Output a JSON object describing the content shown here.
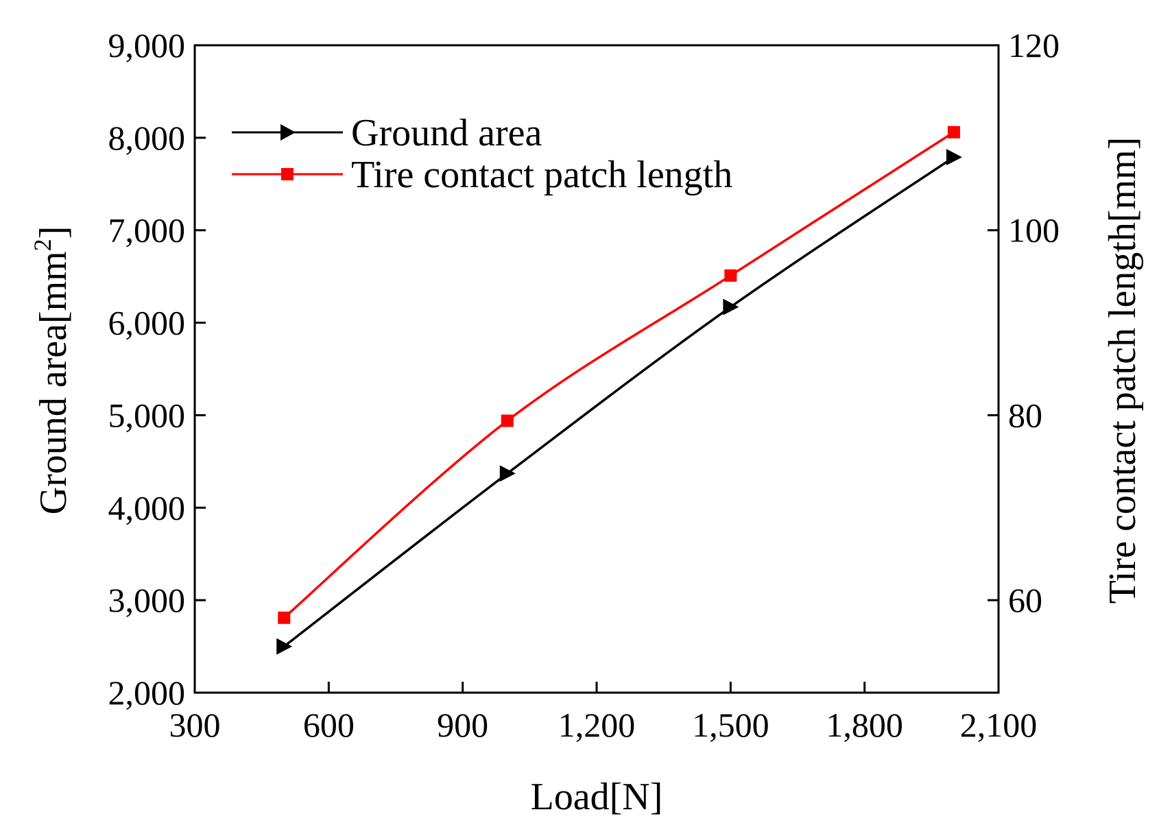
{
  "chart_data": {
    "type": "line",
    "x_axis": {
      "label": "Load[N]",
      "range": [
        300,
        2100
      ],
      "ticks": [
        300,
        600,
        900,
        1200,
        1500,
        1800,
        2100
      ],
      "tick_labels": [
        "300",
        "600",
        "900",
        "1,200",
        "1,500",
        "1,800",
        "2,100"
      ]
    },
    "y_axis_left": {
      "label": "Ground area[mm",
      "label_superscript": "2",
      "label_suffix": "]",
      "range": [
        2000,
        9000
      ],
      "ticks": [
        2000,
        3000,
        4000,
        5000,
        6000,
        7000,
        8000,
        9000
      ],
      "tick_labels": [
        "2,000",
        "3,000",
        "4,000",
        "5,000",
        "6,000",
        "7,000",
        "8,000",
        "9,000"
      ]
    },
    "y_axis_right": {
      "label": "Tire contact patch length[mm]",
      "range": [
        50,
        120
      ],
      "ticks": [
        60,
        80,
        100,
        120
      ],
      "tick_labels": [
        "60",
        "80",
        "100",
        "120"
      ]
    },
    "series": [
      {
        "name": "Ground area",
        "axis": "left",
        "color": "#000000",
        "marker": "triangle-right",
        "x": [
          500,
          1000,
          1500,
          2000
        ],
        "values": [
          2500,
          4370,
          6170,
          7790
        ]
      },
      {
        "name": "Tire contact patch length",
        "axis": "right",
        "color": "#ff0000",
        "marker": "square",
        "x": [
          500,
          1000,
          1500,
          2000
        ],
        "values": [
          58.1,
          79.4,
          95.1,
          110.6
        ]
      }
    ],
    "legend_position": "top-left",
    "grid": false
  }
}
